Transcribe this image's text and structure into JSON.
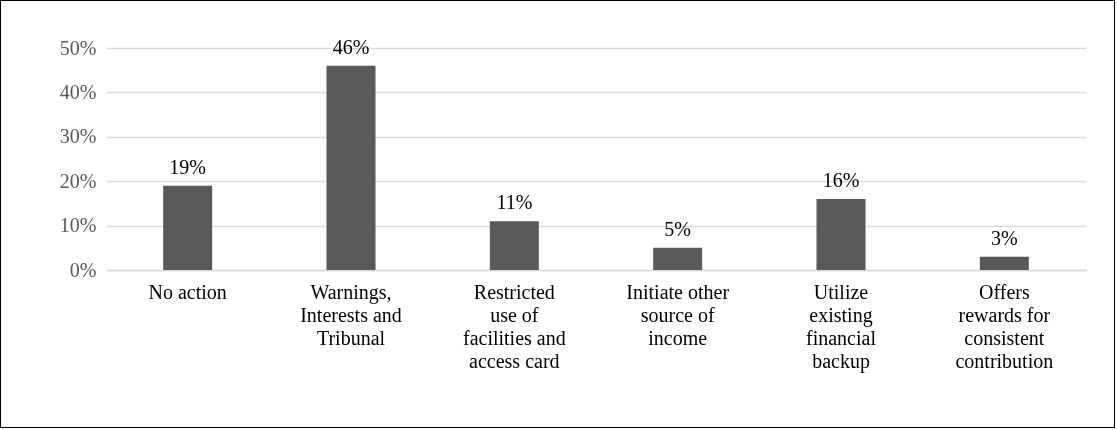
{
  "chart_data": {
    "type": "bar",
    "categories": [
      "No action",
      "Warnings, Interests and Tribunal",
      "Restricted use of facilities and access card",
      "Initiate other source of income",
      "Utilize existing financial backup",
      "Offers rewards for consistent contribution"
    ],
    "values": [
      19,
      46,
      11,
      5,
      16,
      3
    ],
    "value_labels": [
      "19%",
      "46%",
      "11%",
      "5%",
      "16%",
      "3%"
    ],
    "color": "#595959",
    "ylim": [
      0,
      50
    ],
    "yticks": [
      {
        "value": 0,
        "label": "0%"
      },
      {
        "value": 10,
        "label": "10%"
      },
      {
        "value": 20,
        "label": "20%"
      },
      {
        "value": 30,
        "label": "30%"
      },
      {
        "value": 40,
        "label": "40%"
      },
      {
        "value": 50,
        "label": "50%"
      }
    ],
    "grid": "y"
  }
}
